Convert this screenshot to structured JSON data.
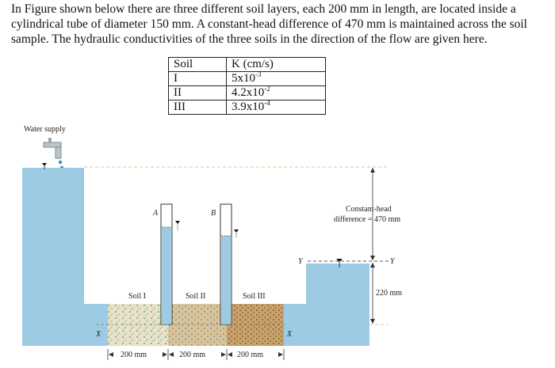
{
  "problem": {
    "text": "In Figure shown below there are three different soil layers, each 200 mm in length, are located inside a cylindrical tube of diameter 150 mm. A constant-head difference of 470 mm is maintained across the soil sample. The hydraulic conductivities of the three soils in the direction of the flow are given here."
  },
  "table": {
    "header_soil": "Soil",
    "header_k": "K (cm/s)",
    "rows": [
      {
        "soil": "I",
        "k_base": "5x10",
        "k_exp": "-3"
      },
      {
        "soil": "II",
        "k_base": "4.2x10",
        "k_exp": "-2"
      },
      {
        "soil": "III",
        "k_base": "3.9x10",
        "k_exp": "-4"
      }
    ]
  },
  "figure": {
    "water_supply": "Water supply",
    "piezometer_a": "A",
    "piezometer_b": "B",
    "soil_1": "Soil I",
    "soil_2": "Soil II",
    "soil_3": "Soil III",
    "constant_head_line1": "Constant-head",
    "constant_head_line2": "difference = 470 mm",
    "dim_220": "220 mm",
    "y_left": "Y",
    "y_right": "Y",
    "x_left": "X",
    "x_right": "X",
    "dim_len_1": "200 mm",
    "dim_len_2": "200 mm",
    "dim_len_3": "200 mm",
    "water_color": "#9ccbe3",
    "soil_colors": [
      "#e9e2c6",
      "#d8c49a",
      "#c9a16c"
    ]
  }
}
